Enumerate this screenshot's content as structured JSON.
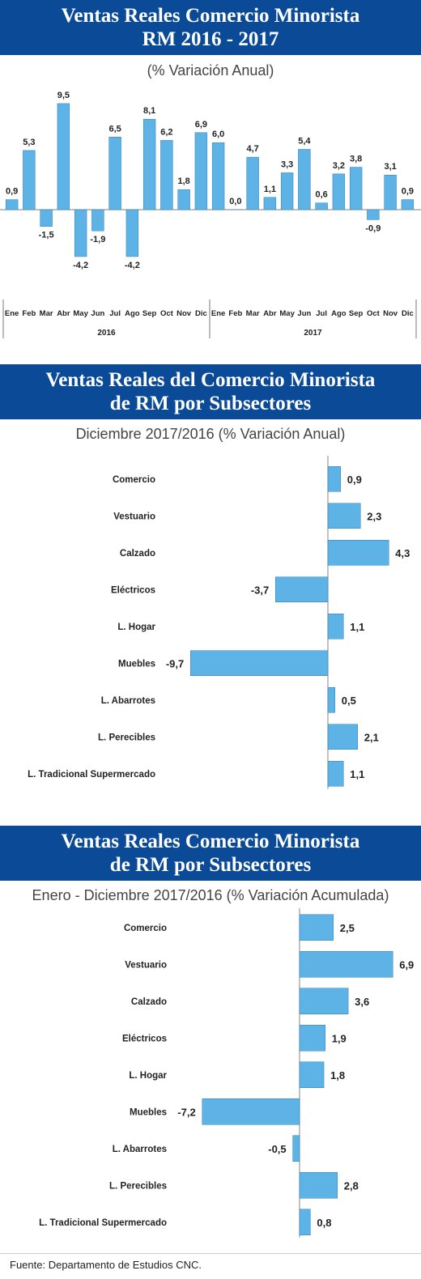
{
  "sections": {
    "monthly": {
      "title_line1": "Ventas Reales Comercio Minorista",
      "title_line2": "RM 2016 - 2017",
      "subtitle": "(% Variación Anual)"
    },
    "december": {
      "title_line1": "Ventas Reales del Comercio Minorista",
      "title_line2": "de RM por Subsectores",
      "subtitle": "Diciembre 2017/2016 (% Variación Anual)"
    },
    "cumulative": {
      "title_line1": "Ventas Reales Comercio Minorista",
      "title_line2": "de RM por Subsectores",
      "subtitle": "Enero - Diciembre 2017/2016 (% Variación Acumulada)"
    }
  },
  "source": "Fuente: Departamento de Estudios CNC.",
  "colors": {
    "banner": "#0b4a96",
    "bar": "#5db2e6",
    "bar_edge": "#2f7fb8"
  },
  "chart_data": [
    {
      "type": "bar",
      "orientation": "vertical",
      "categories": [
        "Ene",
        "Feb",
        "Mar",
        "Abr",
        "May",
        "Jun",
        "Jul",
        "Ago",
        "Sep",
        "Oct",
        "Nov",
        "Dic",
        "Ene",
        "Feb",
        "Mar",
        "Abr",
        "May",
        "Jun",
        "Jul",
        "Ago",
        "Sep",
        "Oct",
        "Nov",
        "Dic"
      ],
      "groups": [
        {
          "label": "2016",
          "count": 12
        },
        {
          "label": "2017",
          "count": 12
        }
      ],
      "values": [
        0.9,
        5.3,
        -1.5,
        9.5,
        -4.2,
        -1.9,
        6.5,
        -4.2,
        8.1,
        6.2,
        1.8,
        6.9,
        6.0,
        0.0,
        4.7,
        1.1,
        3.3,
        5.4,
        0.6,
        3.2,
        3.8,
        -0.9,
        3.1,
        0.9
      ],
      "value_labels": [
        "0,9",
        "5,3",
        "-1,5",
        "9,5",
        "-4,2",
        "-1,9",
        "6,5",
        "-4,2",
        "8,1",
        "6,2",
        "1,8",
        "6,9",
        "6,0",
        "0,0",
        "4,7",
        "1,1",
        "3,3",
        "5,4",
        "0,6",
        "3,2",
        "3,8",
        "-0,9",
        "3,1",
        "0,9"
      ],
      "ylim": [
        -5,
        10
      ],
      "grid": false,
      "legend": "none"
    },
    {
      "type": "bar",
      "orientation": "horizontal",
      "categories": [
        "Comercio",
        "Vestuario",
        "Calzado",
        "Eléctricos",
        "L. Hogar",
        "Muebles",
        "L. Abarrotes",
        "L. Perecibles",
        "L. Tradicional Supermercado"
      ],
      "values": [
        0.9,
        2.3,
        4.3,
        -3.7,
        1.1,
        -9.7,
        0.5,
        2.1,
        1.1
      ],
      "value_labels": [
        "0,9",
        "2,3",
        "4,3",
        "-3,7",
        "1,1",
        "-9,7",
        "0,5",
        "2,1",
        "1,1"
      ],
      "xlim": [
        -10,
        5
      ],
      "grid": false,
      "legend": "none"
    },
    {
      "type": "bar",
      "orientation": "horizontal",
      "categories": [
        "Comercio",
        "Vestuario",
        "Calzado",
        "Eléctricos",
        "L. Hogar",
        "Muebles",
        "L. Abarrotes",
        "L. Perecibles",
        "L. Tradicional Supermercado"
      ],
      "values": [
        2.5,
        6.9,
        3.6,
        1.9,
        1.8,
        -7.2,
        -0.5,
        2.8,
        0.8
      ],
      "value_labels": [
        "2,5",
        "6,9",
        "3,6",
        "1,9",
        "1,8",
        "-7,2",
        "-0,5",
        "2,8",
        "0,8"
      ],
      "xlim": [
        -8,
        7.5
      ],
      "grid": false,
      "legend": "none"
    }
  ]
}
